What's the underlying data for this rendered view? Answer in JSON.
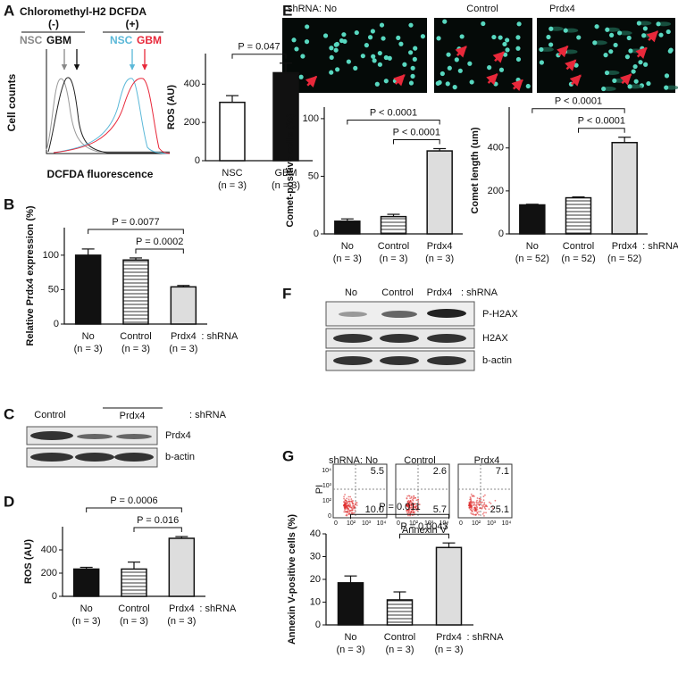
{
  "panel_labels": [
    "A",
    "B",
    "C",
    "D",
    "E",
    "F",
    "G"
  ],
  "flow_histogram": {
    "title": "Chloromethyl-H2 DCFDA",
    "groups": [
      "(-)",
      "(+)"
    ],
    "legend": [
      "NSC",
      "GBM",
      "NSC",
      "GBM"
    ],
    "ylabel": "Cell counts",
    "xlabel": "DCFDA fluorescence"
  },
  "blot_c": {
    "header": [
      "Control",
      "Prdx4",
      ": shRNA"
    ],
    "rows": [
      "Prdx4",
      "b-actin"
    ]
  },
  "comet_images": {
    "labels": [
      "shRNA:  No",
      "Control",
      "Prdx4"
    ]
  },
  "blot_f": {
    "header": [
      "No",
      "Control",
      "Prdx4",
      ": shRNA"
    ],
    "rows": [
      "P-H2AX",
      "H2AX",
      "b-actin"
    ]
  },
  "flow_g": {
    "labels": [
      "shRNA:  No",
      "Control",
      "Prdx4"
    ],
    "ylabel": "PI",
    "xlabel": "Annexin V",
    "ticks": [
      "0",
      "10²",
      "10³",
      "10⁴"
    ],
    "quadrants": [
      [
        "5.5",
        "10.0"
      ],
      [
        "2.6",
        "5.7"
      ],
      [
        "7.1",
        "25.1"
      ]
    ]
  },
  "chart_data": [
    {
      "type": "bar",
      "ylabel": "ROS (AU)",
      "categories": [
        "NSC",
        "GBM"
      ],
      "n_labels": [
        "(n = 3)",
        "(n = 3)"
      ],
      "values": [
        305,
        460
      ],
      "errors": [
        35,
        50
      ],
      "colors": [
        "#ffffff",
        "#111111"
      ],
      "ylim": [
        0,
        560
      ],
      "yticks": [
        0,
        200,
        400
      ],
      "brackets": [
        {
          "from": 0,
          "to": 1,
          "label": "P = 0.047"
        }
      ]
    },
    {
      "type": "bar",
      "ylabel": "Relative Prdx4 expression (%)",
      "categories": [
        "No",
        "Control",
        "Prdx4"
      ],
      "category_suffix": ": shRNA",
      "n_labels": [
        "(n = 3)",
        "(n = 3)",
        "(n = 3)"
      ],
      "values": [
        100,
        93,
        54
      ],
      "errors": [
        9,
        3,
        2
      ],
      "colors": [
        "#111111",
        "stripes",
        "#dddddd"
      ],
      "ylim": [
        0,
        140
      ],
      "yticks": [
        0,
        50,
        100
      ],
      "brackets": [
        {
          "from": 0,
          "to": 2,
          "label": "P = 0.0077"
        },
        {
          "from": 1,
          "to": 2,
          "label": "P = 0.0002"
        }
      ]
    },
    {
      "type": "bar",
      "ylabel": "ROS (AU)",
      "categories": [
        "No",
        "Control",
        "Prdx4"
      ],
      "category_suffix": ": shRNA",
      "n_labels": [
        "(n = 3)",
        "(n = 3)",
        "(n = 3)"
      ],
      "values": [
        235,
        235,
        500
      ],
      "errors": [
        15,
        60,
        15
      ],
      "colors": [
        "#111111",
        "stripes",
        "#dddddd"
      ],
      "ylim": [
        0,
        600
      ],
      "yticks": [
        0,
        200,
        400
      ],
      "brackets": [
        {
          "from": 0,
          "to": 2,
          "label": "P = 0.0006"
        },
        {
          "from": 1,
          "to": 2,
          "label": "P = 0.016"
        }
      ]
    },
    {
      "type": "bar",
      "ylabel": "Comet-positive cells (%)",
      "categories": [
        "No",
        "Control",
        "Prdx4"
      ],
      "n_labels": [
        "(n = 3)",
        "(n = 3)",
        "(n = 3)"
      ],
      "values": [
        11,
        15,
        72
      ],
      "errors": [
        2,
        2,
        2
      ],
      "colors": [
        "#111111",
        "stripes",
        "#dddddd"
      ],
      "ylim": [
        0,
        110
      ],
      "yticks": [
        0,
        50,
        100
      ],
      "brackets": [
        {
          "from": 0,
          "to": 2,
          "label": "P < 0.0001"
        },
        {
          "from": 1,
          "to": 2,
          "label": "P < 0.0001"
        }
      ]
    },
    {
      "type": "bar",
      "ylabel": "Comet length (um)",
      "categories": [
        "No",
        "Control",
        "Prdx4"
      ],
      "category_suffix": ": shRNA",
      "n_labels": [
        "(n = 52)",
        "(n = 52)",
        "(n = 52)"
      ],
      "values": [
        135,
        168,
        425
      ],
      "errors": [
        3,
        4,
        25
      ],
      "colors": [
        "#111111",
        "stripes",
        "#dddddd"
      ],
      "ylim": [
        0,
        590
      ],
      "yticks": [
        0,
        200,
        400
      ],
      "brackets": [
        {
          "from": 0,
          "to": 2,
          "label": "P < 0.0001"
        },
        {
          "from": 1,
          "to": 2,
          "label": "P < 0.0001"
        }
      ]
    },
    {
      "type": "bar",
      "ylabel": "Annexin V-positive cells (%)",
      "categories": [
        "No",
        "Control",
        "Prdx4"
      ],
      "category_suffix": ": shRNA",
      "n_labels": [
        "(n = 3)",
        "(n = 3)",
        "(n = 3)"
      ],
      "values": [
        18.5,
        11,
        34
      ],
      "errors": [
        3,
        3.5,
        2
      ],
      "colors": [
        "#111111",
        "stripes",
        "#dddddd"
      ],
      "ylim": [
        0,
        40
      ],
      "yticks": [
        0,
        10,
        20,
        30,
        40
      ],
      "brackets": [
        {
          "from": 0,
          "to": 2,
          "label": "P = 0.011"
        },
        {
          "from": 1,
          "to": 2,
          "label": "P = 0.0043"
        }
      ]
    }
  ]
}
